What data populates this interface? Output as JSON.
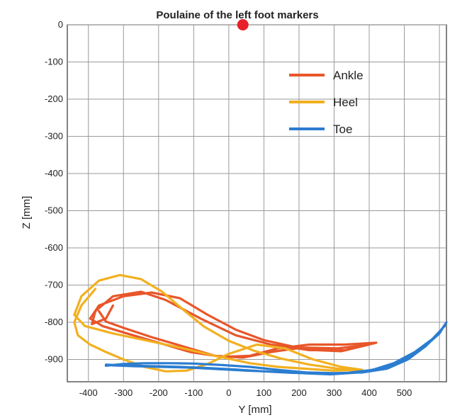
{
  "chart_data": {
    "type": "line",
    "title": "Poulaine of the left foot markers",
    "xlabel": "Y [mm]",
    "ylabel": "Z [mm]",
    "xlim": [
      -460,
      620
    ],
    "ylim": [
      -960,
      0
    ],
    "x_ticks": [
      -400,
      -300,
      -200,
      -100,
      0,
      100,
      200,
      300,
      400,
      500
    ],
    "y_ticks": [
      0,
      -100,
      -200,
      -300,
      -400,
      -500,
      -600,
      -700,
      -800,
      -900
    ],
    "grid": true,
    "legend_position": "top-right",
    "origin_marker": {
      "x": 40,
      "y": 0,
      "color": "#e8202a"
    },
    "series": [
      {
        "name": "Ankle",
        "color": "#e8562a",
        "x": [
          -330,
          -350,
          -390,
          -380,
          -330,
          -250,
          -180,
          -80,
          20,
          120,
          230,
          330,
          420,
          330,
          230,
          140,
          60,
          -20,
          -110,
          -200,
          -290,
          -360,
          -395,
          -370,
          -300,
          -220,
          -140,
          -60,
          20,
          100,
          180,
          250,
          320,
          400,
          310,
          210,
          120,
          40,
          -40,
          -130,
          -220,
          -300,
          -350,
          -370
        ],
        "y": [
          -755,
          -790,
          -805,
          -770,
          -730,
          -718,
          -740,
          -790,
          -835,
          -860,
          -875,
          -875,
          -855,
          -860,
          -860,
          -870,
          -890,
          -893,
          -880,
          -855,
          -830,
          -810,
          -790,
          -755,
          -730,
          -720,
          -735,
          -780,
          -820,
          -848,
          -865,
          -875,
          -878,
          -860,
          -870,
          -868,
          -880,
          -895,
          -890,
          -865,
          -840,
          -815,
          -798,
          -770
        ]
      },
      {
        "name": "Heel",
        "color": "#f2b020",
        "x": [
          -380,
          -420,
          -440,
          -430,
          -395,
          -350,
          -300,
          -240,
          -180,
          -120,
          -60,
          0,
          80,
          160,
          240,
          320,
          380,
          300,
          220,
          140,
          60,
          -40,
          -140,
          -240,
          -330,
          -410,
          -440,
          -420,
          -370,
          -310,
          -250,
          -190,
          -130,
          -70,
          0,
          70,
          150,
          230,
          310,
          370
        ],
        "y": [
          -710,
          -755,
          -800,
          -835,
          -860,
          -880,
          -900,
          -920,
          -932,
          -930,
          -912,
          -885,
          -860,
          -870,
          -900,
          -920,
          -928,
          -930,
          -925,
          -920,
          -910,
          -890,
          -868,
          -848,
          -830,
          -810,
          -780,
          -730,
          -688,
          -673,
          -684,
          -718,
          -766,
          -812,
          -850,
          -876,
          -898,
          -914,
          -925,
          -930
        ]
      },
      {
        "name": "Toe",
        "color": "#2b7dd0",
        "x": [
          -350,
          -300,
          -240,
          -170,
          -100,
          -20,
          60,
          140,
          220,
          300,
          380,
          450,
          510,
          560,
          600,
          620,
          600,
          555,
          500,
          440,
          370,
          290,
          210,
          130,
          50,
          -30,
          -110,
          -190,
          -270,
          -330,
          -350,
          -300,
          -220,
          -140,
          -60,
          20,
          100,
          180,
          260,
          340,
          410,
          470,
          530,
          580,
          615
        ],
        "y": [
          -917,
          -912,
          -910,
          -910,
          -911,
          -915,
          -920,
          -928,
          -935,
          -937,
          -935,
          -925,
          -900,
          -865,
          -828,
          -800,
          -830,
          -868,
          -900,
          -922,
          -935,
          -940,
          -937,
          -933,
          -930,
          -926,
          -922,
          -920,
          -918,
          -916,
          -914,
          -916,
          -918,
          -920,
          -923,
          -927,
          -932,
          -936,
          -938,
          -936,
          -928,
          -910,
          -880,
          -845,
          -810
        ]
      }
    ]
  }
}
